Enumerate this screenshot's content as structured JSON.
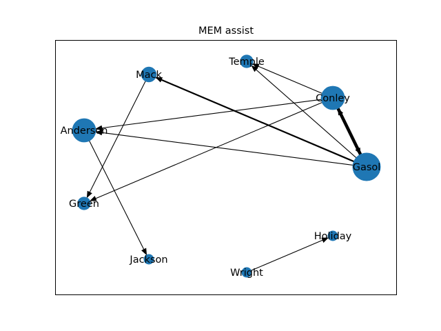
{
  "chart_data": {
    "type": "network",
    "title": "MEM assist",
    "node_color": "#1f77b4",
    "edge_color": "#000000",
    "nodes": [
      {
        "id": "Mack",
        "label": "Mack",
        "weight": 2
      },
      {
        "id": "Temple",
        "label": "Temple",
        "weight": 1.5
      },
      {
        "id": "Conley",
        "label": "Conley",
        "weight": 4
      },
      {
        "id": "Anderson",
        "label": "Anderson",
        "weight": 4
      },
      {
        "id": "Gasol",
        "label": "Gasol",
        "weight": 5
      },
      {
        "id": "Green",
        "label": "Green",
        "weight": 1.5
      },
      {
        "id": "Holiday",
        "label": "Holiday",
        "weight": 0.8
      },
      {
        "id": "Jackson",
        "label": "Jackson",
        "weight": 0.8
      },
      {
        "id": "Wright",
        "label": "Wright",
        "weight": 0.8
      }
    ],
    "edges": [
      {
        "source": "Conley",
        "target": "Temple",
        "weight": 1
      },
      {
        "source": "Conley",
        "target": "Anderson",
        "weight": 1
      },
      {
        "source": "Conley",
        "target": "Green",
        "weight": 1
      },
      {
        "source": "Conley",
        "target": "Gasol",
        "weight": 4
      },
      {
        "source": "Gasol",
        "target": "Conley",
        "weight": 4
      },
      {
        "source": "Gasol",
        "target": "Mack",
        "weight": 2
      },
      {
        "source": "Gasol",
        "target": "Temple",
        "weight": 1
      },
      {
        "source": "Gasol",
        "target": "Anderson",
        "weight": 1
      },
      {
        "source": "Mack",
        "target": "Green",
        "weight": 1
      },
      {
        "source": "Anderson",
        "target": "Jackson",
        "weight": 1
      },
      {
        "source": "Wright",
        "target": "Holiday",
        "weight": 1
      }
    ]
  }
}
